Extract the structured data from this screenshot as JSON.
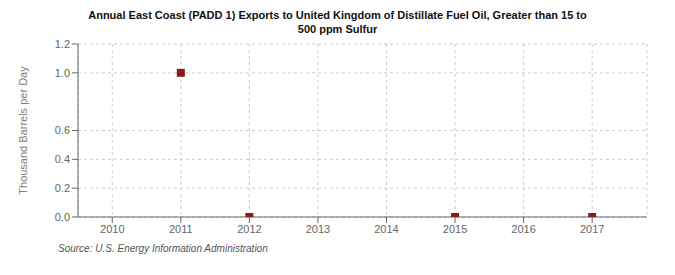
{
  "chart_data": {
    "type": "scatter",
    "title": "Annual East Coast (PADD 1) Exports to United Kingdom of Distillate Fuel Oil, Greater than 15 to\n500 ppm Sulfur",
    "y_label": "Thousand Barrels per Day",
    "annotations": [
      "Source: U.S. Energy Information Administration"
    ],
    "x": [
      2011,
      2012,
      2015,
      2017
    ],
    "values": [
      1.0,
      0.0,
      0.0,
      0.0
    ],
    "color": "#8B1A1A",
    "marker": "square",
    "xlim": [
      2009.5,
      2017.8
    ],
    "ylim": [
      0.0,
      1.2
    ],
    "xticks": [
      2010,
      2011,
      2012,
      2013,
      2014,
      2015,
      2016,
      2017
    ],
    "yticks": [
      {
        "value": 0.0,
        "label": "0.0"
      },
      0.2,
      0.4,
      0.6,
      {
        "value": 1.0,
        "label": "1.0"
      },
      1.2
    ],
    "grid": true
  }
}
